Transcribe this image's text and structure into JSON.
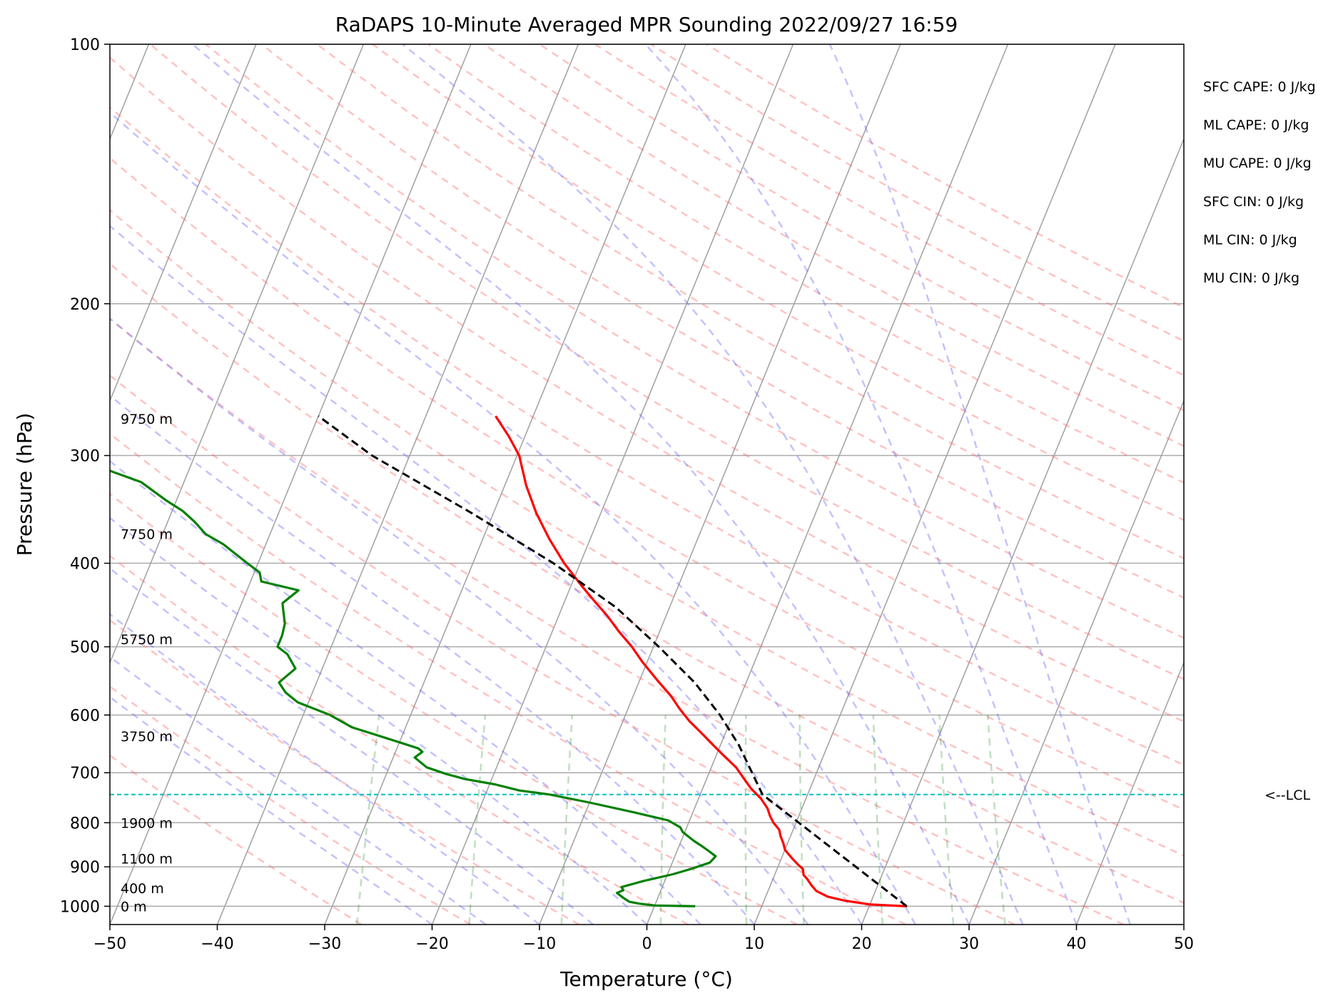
{
  "chart_data": {
    "type": "line",
    "subtype": "skew-t log-p",
    "title": "RaDAPS 10-Minute Averaged MPR Sounding 2022/09/27 16:59",
    "xlabel": "Temperature (°C)",
    "ylabel": "Pressure (hPa)",
    "xlim": [
      -50,
      50
    ],
    "ylim": [
      1050,
      100
    ],
    "y_scale": "log",
    "skew": true,
    "grid": true,
    "x_ticks": [
      "−50",
      "−40",
      "−30",
      "−20",
      "−10",
      "0",
      "10",
      "20",
      "30",
      "40",
      "50"
    ],
    "y_ticks": [
      "100",
      "200",
      "300",
      "400",
      "500",
      "600",
      "700",
      "800",
      "900",
      "1000"
    ],
    "series": [
      {
        "color": "#ff0000",
        "pressure": [
          1000,
          995,
          985,
          975,
          960,
          945,
          930,
          920,
          905,
          895,
          880,
          870,
          860,
          845,
          830,
          815,
          800,
          785,
          770,
          750,
          730,
          710,
          690,
          670,
          650,
          630,
          610,
          590,
          570,
          545,
          520,
          500,
          480,
          460,
          445,
          425,
          400,
          375,
          350,
          325,
          300,
          285,
          270
        ],
        "temperature": [
          23.5,
          20,
          17.5,
          15.8,
          14.5,
          13.8,
          13.2,
          12.7,
          12.4,
          11.8,
          11.0,
          10.5,
          10.0,
          9.6,
          9.1,
          8.7,
          7.9,
          7.3,
          6.8,
          5.8,
          4.5,
          3.4,
          2.3,
          0.8,
          -0.7,
          -2.2,
          -3.8,
          -5.2,
          -6.5,
          -8.5,
          -10.5,
          -12.0,
          -13.8,
          -15.5,
          -17.0,
          -19.0,
          -21.5,
          -23.8,
          -26.0,
          -28.0,
          -29.8,
          -31.5,
          -33.5
        ]
      },
      {
        "color": "#008000",
        "pressure": [
          1000,
          998,
          993,
          988,
          978,
          965,
          958,
          950,
          945,
          935,
          918,
          905,
          890,
          875,
          862,
          850,
          840,
          830,
          820,
          810,
          795,
          778,
          758,
          742,
          734,
          722,
          712,
          702,
          690,
          672,
          662,
          656,
          648,
          630,
          620,
          600,
          580,
          565,
          550,
          530,
          510,
          500,
          485,
          470,
          455,
          445,
          430,
          420,
          410,
          400,
          380,
          370,
          358,
          348,
          338,
          322,
          312,
          302,
          300
        ],
        "temperature": [
          3.8,
          0,
          -1.5,
          -2.5,
          -3.2,
          -4,
          -3.5,
          -3.8,
          -3.2,
          -2,
          0.5,
          2.0,
          3.5,
          3.8,
          2.9,
          2.0,
          1.2,
          0.5,
          -0.2,
          -0.6,
          -2.0,
          -5.5,
          -10.0,
          -14.0,
          -17.0,
          -19.5,
          -22.5,
          -24.5,
          -26.5,
          -28.0,
          -27.5,
          -28.0,
          -29.5,
          -33.0,
          -35.0,
          -37.5,
          -41.0,
          -42.5,
          -43.5,
          -42.5,
          -43.8,
          -45.0,
          -45.0,
          -45.2,
          -45.8,
          -46.2,
          -45.2,
          -49.0,
          -49.5,
          -51.0,
          -54.0,
          -56.0,
          -57.5,
          -59.0,
          -61.0,
          -64.0,
          -67.5,
          -80.0,
          -95.0
        ]
      },
      {
        "color": "#000000",
        "style": "dashed",
        "pressure": [
          1000,
          742,
          700,
          650,
          600,
          550,
          500,
          450,
          400,
          350,
          300,
          270
        ],
        "temperature": [
          23.5,
          5.8,
          4.0,
          1.7,
          -1.2,
          -4.8,
          -9.5,
          -15.0,
          -22.5,
          -32.0,
          -43.5,
          -50.0
        ]
      }
    ],
    "lcl": {
      "pressure": 742,
      "label": "<--LCL",
      "color": "#00bfbf"
    },
    "height_labels": [
      {
        "pressure": 1000,
        "label": "0 m"
      },
      {
        "pressure": 953,
        "label": "400 m"
      },
      {
        "pressure": 880,
        "label": "1100 m"
      },
      {
        "pressure": 800,
        "label": "1900 m"
      },
      {
        "pressure": 635,
        "label": "3750 m"
      },
      {
        "pressure": 490,
        "label": "5750 m"
      },
      {
        "pressure": 370,
        "label": "7750 m"
      },
      {
        "pressure": 272,
        "label": "9750 m"
      }
    ],
    "indices": [
      {
        "label": "SFC CAPE: 0 J/kg"
      },
      {
        "label": "ML CAPE: 0 J/kg"
      },
      {
        "label": "MU CAPE: 0 J/kg"
      },
      {
        "label": "SFC CIN: 0 J/kg"
      },
      {
        "label": "ML CIN: 0 J/kg"
      },
      {
        "label": "MU CIN: 0 J/kg"
      }
    ]
  }
}
